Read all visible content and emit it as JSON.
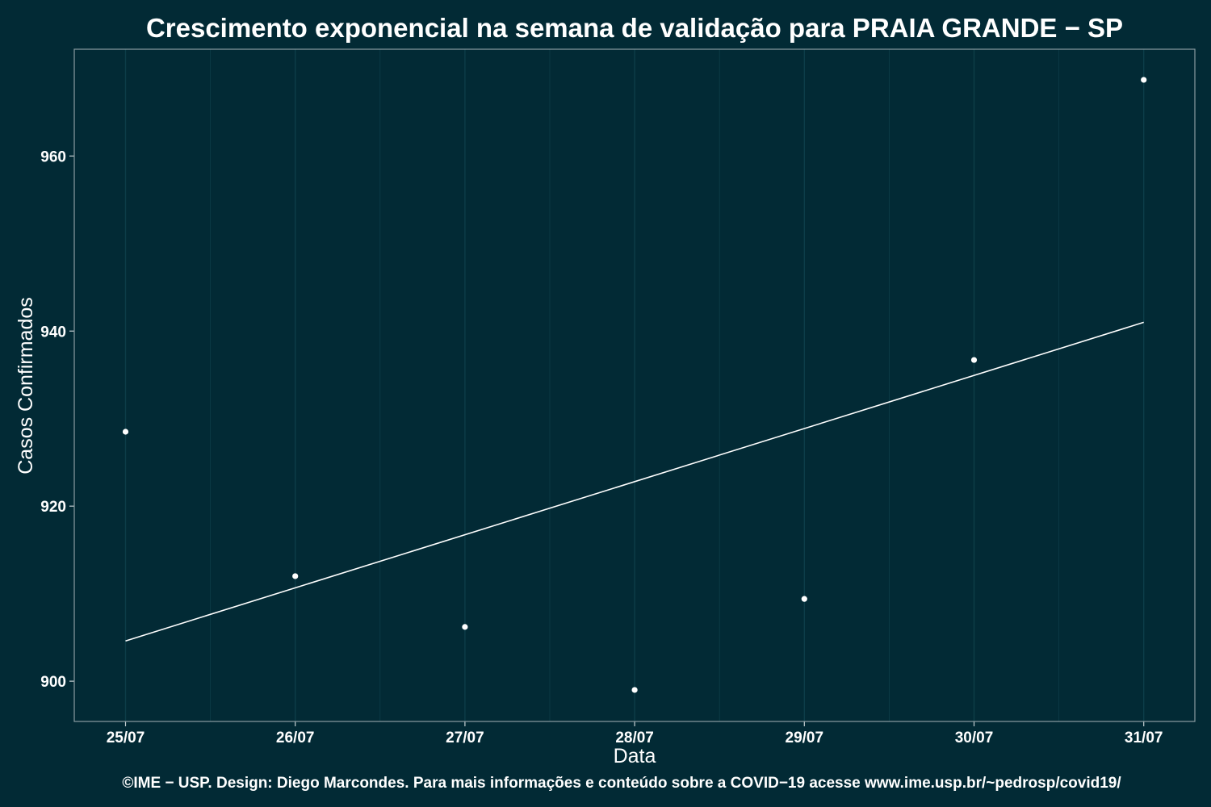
{
  "colors": {
    "background": "#022a35",
    "panel_border": "#8a9ca1",
    "grid": "#0c3d49",
    "tick": "#c7d0d3",
    "series": "#ffffff"
  },
  "chart_data": {
    "type": "scatter",
    "title": "Crescimento exponencial na semana de validação para PRAIA GRANDE − SP",
    "xlabel": "Data",
    "ylabel": "Casos Confirmados",
    "caption": "©IME − USP. Design: Diego Marcondes. Para mais informações e conteúdo sobre a COVID−19 acesse www.ime.usp.br/~pedrosp/covid19/",
    "categories": [
      "25/07",
      "26/07",
      "27/07",
      "28/07",
      "29/07",
      "30/07",
      "31/07"
    ],
    "points": [
      928.5,
      912,
      906.2,
      899,
      909.4,
      936.7,
      968.7
    ],
    "fit_line": {
      "start": 904.6,
      "end": 941.0
    },
    "yticks": [
      900,
      920,
      940,
      960
    ],
    "ylim": [
      895.4,
      972.2
    ],
    "grid": true,
    "legend": "none"
  }
}
